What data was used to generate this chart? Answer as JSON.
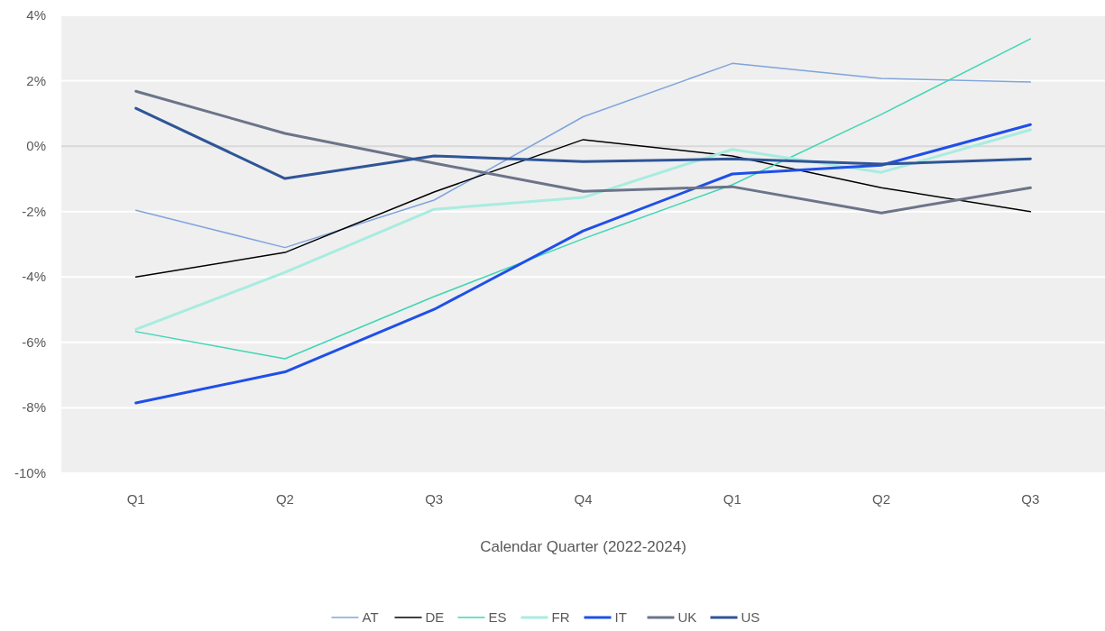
{
  "chart_data": {
    "type": "line",
    "xlabel": "Calendar Quarter (2022-2024)",
    "categories": [
      "Q1",
      "Q2",
      "Q3",
      "Q4",
      "Q1",
      "Q2",
      "Q3"
    ],
    "series": [
      {
        "name": "AT",
        "color": "#7fa4dc",
        "values": [
          -1.96,
          -3.1,
          -1.65,
          0.9,
          2.53,
          2.07,
          1.96
        ]
      },
      {
        "name": "DE",
        "color": "#000000",
        "values": [
          -4.0,
          -3.25,
          -1.4,
          0.2,
          -0.3,
          -1.27,
          -2.0
        ]
      },
      {
        "name": "ES",
        "color": "#3ed6b4",
        "values": [
          -5.67,
          -6.5,
          -4.6,
          -2.83,
          -1.18,
          0.97,
          3.28
        ]
      },
      {
        "name": "FR",
        "color": "#a8ece0",
        "values": [
          -5.6,
          -3.86,
          -1.93,
          -1.57,
          -0.1,
          -0.8,
          0.5
        ]
      },
      {
        "name": "IT",
        "color": "#1f4fe8",
        "values": [
          -7.85,
          -6.9,
          -4.99,
          -2.59,
          -0.85,
          -0.58,
          0.66
        ]
      },
      {
        "name": "UK",
        "color": "#6b7489",
        "values": [
          1.68,
          0.39,
          -0.52,
          -1.38,
          -1.24,
          -2.04,
          -1.27
        ]
      },
      {
        "name": "US",
        "color": "#2f5597",
        "values": [
          1.16,
          -0.99,
          -0.3,
          -0.47,
          -0.39,
          -0.55,
          -0.39
        ]
      }
    ],
    "ylim": [
      -10,
      4
    ],
    "yticks": [
      {
        "value": -10,
        "label": "-10%"
      },
      {
        "value": -8,
        "label": "-8%"
      },
      {
        "value": -6,
        "label": "-6%"
      },
      {
        "value": -4,
        "label": "-4%"
      },
      {
        "value": -2,
        "label": "-2%"
      },
      {
        "value": 0,
        "label": "0%"
      },
      {
        "value": 2,
        "label": "2%"
      },
      {
        "value": 4,
        "label": "4%"
      }
    ],
    "grid": "y",
    "legend": "bottom",
    "marker": "none",
    "line_style": "solid"
  }
}
